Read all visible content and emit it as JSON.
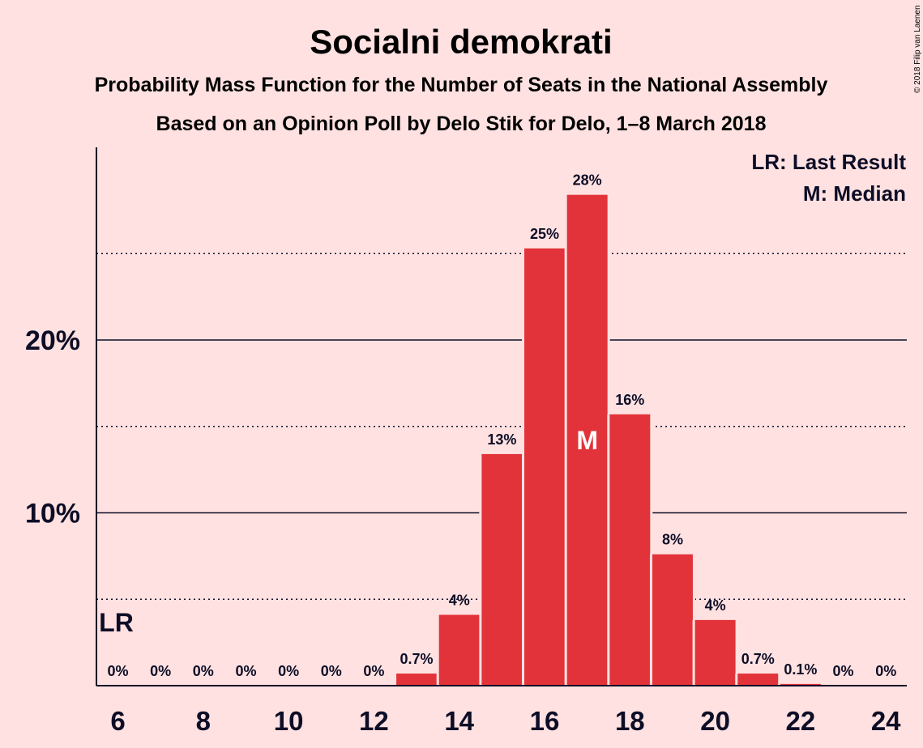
{
  "chart_data": {
    "type": "bar",
    "title": "Socialni demokrati",
    "subtitle_1": "Probability Mass Function for the Number of Seats in the National Assembly",
    "subtitle_2": "Based on an Opinion Poll by Delo Stik for Delo, 1–8 March 2018",
    "copyright": "© 2018 Filip van Laenen",
    "legend": [
      "LR: Last Result",
      "M: Median"
    ],
    "categories": [
      6,
      7,
      8,
      9,
      10,
      11,
      12,
      13,
      14,
      15,
      16,
      17,
      18,
      19,
      20,
      21,
      22,
      23,
      24
    ],
    "values": [
      0,
      0,
      0,
      0,
      0,
      0,
      0,
      0.7,
      4.1,
      13.4,
      25.3,
      28.4,
      15.7,
      7.6,
      3.8,
      0.7,
      0.1,
      0,
      0
    ],
    "value_labels": [
      "0%",
      "0%",
      "0%",
      "0%",
      "0%",
      "0%",
      "0%",
      "0.7%",
      "4%",
      "13%",
      "25%",
      "28%",
      "16%",
      "8%",
      "4%",
      "0.7%",
      "0.1%",
      "0%",
      "0%"
    ],
    "x_tick_labels": [
      "6",
      "8",
      "10",
      "12",
      "14",
      "16",
      "18",
      "20",
      "22",
      "24"
    ],
    "y_tick_labels": [
      "10%",
      "20%"
    ],
    "ylim": [
      0,
      31
    ],
    "gridlines_solid": [
      10,
      20
    ],
    "gridlines_dotted": [
      5,
      15,
      25
    ],
    "last_result": {
      "seats": 6,
      "label": "LR"
    },
    "median": {
      "seats": 17,
      "label": "M"
    },
    "bar_color": "#e3333a",
    "background_color": "#ffe1e1"
  }
}
